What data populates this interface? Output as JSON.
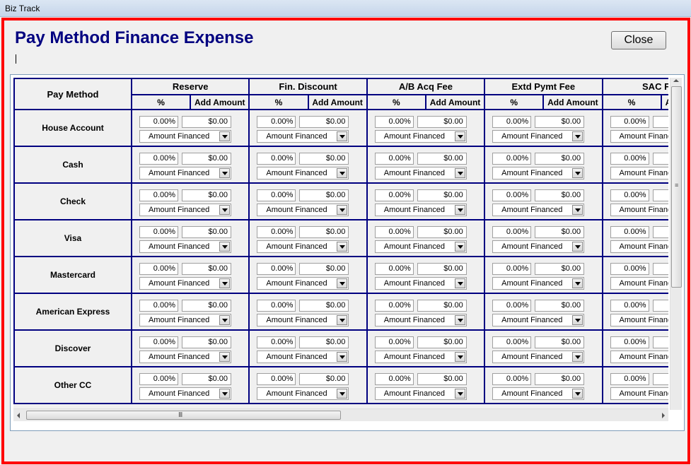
{
  "window": {
    "title": "Biz Track"
  },
  "page": {
    "title": "Pay Method Finance Expense",
    "close_label": "Close"
  },
  "grid": {
    "pay_method_header": "Pay Method",
    "pct_header": "%",
    "amount_header": "Add Amount",
    "groups": [
      "Reserve",
      "Fin. Discount",
      "A/B Acq Fee",
      "Extd Pymt Fee",
      "SAC Fee"
    ],
    "rows": [
      {
        "label": "House Account"
      },
      {
        "label": "Cash"
      },
      {
        "label": "Check"
      },
      {
        "label": "Visa"
      },
      {
        "label": "Mastercard"
      },
      {
        "label": "American Express"
      },
      {
        "label": "Discover"
      },
      {
        "label": "Other CC"
      }
    ],
    "cell": {
      "pct": "0.00%",
      "amount": "$0.00",
      "basis": "Amount Financed"
    }
  },
  "scrollbar": {
    "hgrip": "III",
    "vgrip": "≡"
  }
}
